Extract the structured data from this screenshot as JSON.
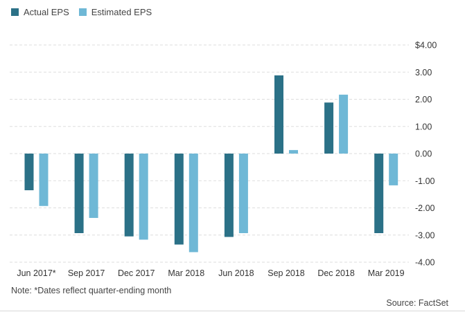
{
  "legend": {
    "actual_label": "Actual EPS",
    "estimated_label": "Estimated EPS"
  },
  "colors": {
    "actual": "#2b7187",
    "estimated": "#6fb8d6",
    "grid": "#dddddd"
  },
  "note": "Note: *Dates reflect quarter-ending month",
  "source": "Source: FactSet",
  "chart_data": {
    "type": "bar",
    "categories": [
      "Jun 2017*",
      "Sep 2017",
      "Dec 2017",
      "Mar 2018",
      "Jun 2018",
      "Sep 2018",
      "Dec 2018",
      "Mar 2019"
    ],
    "series": [
      {
        "name": "Actual EPS",
        "values": [
          -1.35,
          -2.93,
          -3.05,
          -3.35,
          -3.07,
          2.88,
          1.88,
          -2.93
        ]
      },
      {
        "name": "Estimated EPS",
        "values": [
          -1.93,
          -2.37,
          -3.17,
          -3.63,
          -2.93,
          0.13,
          2.17,
          -1.17
        ]
      }
    ],
    "ylim": [
      -4.0,
      4.0
    ],
    "yticks": [
      4.0,
      3.0,
      2.0,
      1.0,
      0.0,
      -1.0,
      -2.0,
      -3.0,
      -4.0
    ],
    "ytick_labels": [
      "$4.00",
      "3.00",
      "2.00",
      "1.00",
      "0.00",
      "-1.00",
      "-2.00",
      "-3.00",
      "-4.00"
    ],
    "grid": true,
    "legend_position": "top-left"
  }
}
